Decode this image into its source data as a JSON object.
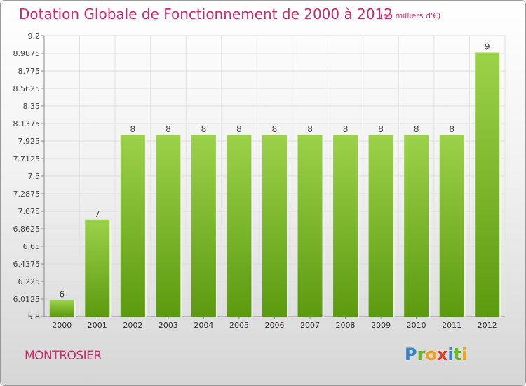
{
  "header": {
    "title": "Dotation Globale de Fonctionnement de 2000 à 2012",
    "unit": "(en milliers d'€)"
  },
  "footer": {
    "commune": "MONTROSIER",
    "logo_text": "Proxiti"
  },
  "colors": {
    "bar_light": "#9cd24a",
    "bar_dark": "#5c9a10",
    "title": "#cc2a6a"
  },
  "chart_data": {
    "type": "bar",
    "title": "Dotation Globale de Fonctionnement de 2000 à 2012",
    "xlabel": "",
    "ylabel": "",
    "categories": [
      "2000",
      "2001",
      "2002",
      "2003",
      "2004",
      "2005",
      "2006",
      "2007",
      "2008",
      "2009",
      "2010",
      "2011",
      "2012"
    ],
    "values": [
      6.0,
      6.975,
      8.0,
      8.0,
      8.0,
      8.0,
      8.0,
      8.0,
      8.0,
      8.0,
      8.0,
      8.0,
      9.0
    ],
    "data_labels": [
      "6",
      "7",
      "8",
      "8",
      "8",
      "8",
      "8",
      "8",
      "8",
      "8",
      "8",
      "8",
      "9"
    ],
    "ylim": [
      5.8,
      9.2
    ],
    "yticks": [
      5.8,
      6.0125,
      6.225,
      6.4375,
      6.65,
      6.8625,
      7.075,
      7.2875,
      7.5,
      7.7125,
      7.925,
      8.1375,
      8.35,
      8.5625,
      8.775,
      8.9875,
      9.2
    ],
    "ytick_labels": [
      "5.8",
      "6.0125",
      "6.225",
      "6.4375",
      "6.65",
      "6.8625",
      "7.075",
      "7.2875",
      "7.5",
      "7.7125",
      "7.925",
      "8.1375",
      "8.35",
      "8.5625",
      "8.775",
      "8.9875",
      "9.2"
    ],
    "grid": true
  }
}
